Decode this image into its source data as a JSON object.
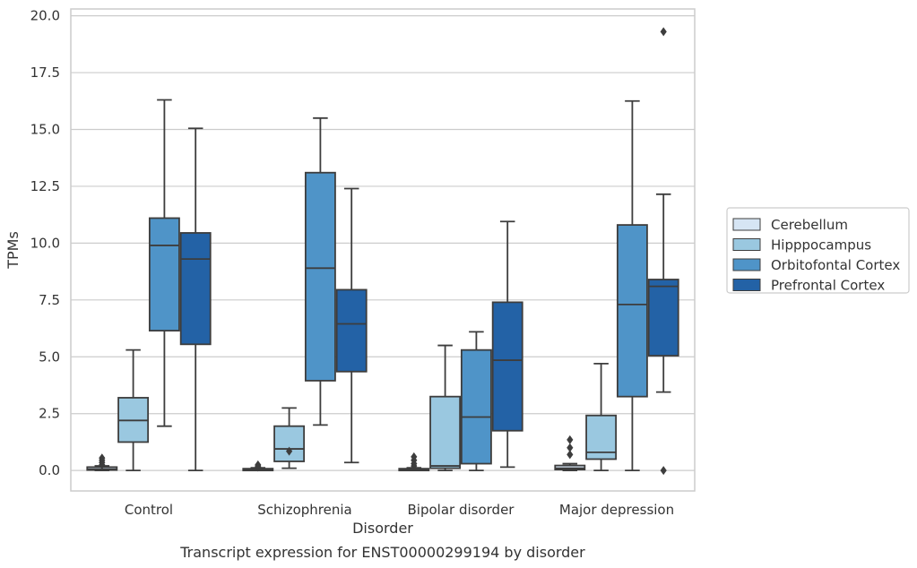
{
  "chart_data": {
    "type": "box",
    "title": "",
    "caption": "Transcript expression for ENST00000299194 by disorder",
    "xlabel": "Disorder",
    "ylabel": "TPMs",
    "ylim": [
      -0.9,
      20.3
    ],
    "yticks": [
      "0.0",
      "2.5",
      "5.0",
      "7.5",
      "10.0",
      "12.5",
      "15.0",
      "17.5",
      "20.0"
    ],
    "ytick_values": [
      0,
      2.5,
      5,
      7.5,
      10,
      12.5,
      15,
      17.5,
      20
    ],
    "categories": [
      "Control",
      "Schizophrenia",
      "Bipolar disorder",
      "Major depression"
    ],
    "grid": "horizontal",
    "legend_position": "right",
    "colors": {
      "Cerebellum": "#d6e5f4",
      "Hipppocampus": "#9ac8e0",
      "Orbitofontal Cortex": "#4f94c8",
      "Prefrontal Cortex": "#2362a6",
      "edge": "#3d3d3d",
      "grid": "#cccccc"
    },
    "series": [
      {
        "name": "Cerebellum",
        "boxes": [
          {
            "min": 0.0,
            "q1": 0.02,
            "median": 0.06,
            "q3": 0.15,
            "max": 0.2,
            "outliers": [
              0.25,
              0.35,
              0.45,
              0.55
            ]
          },
          {
            "min": 0.0,
            "q1": 0.0,
            "median": 0.03,
            "q3": 0.08,
            "max": 0.12,
            "outliers": [
              0.15,
              0.2,
              0.25
            ]
          },
          {
            "min": 0.0,
            "q1": 0.0,
            "median": 0.03,
            "q3": 0.08,
            "max": 0.12,
            "outliers": [
              0.2,
              0.3,
              0.45,
              0.6
            ]
          },
          {
            "min": 0.0,
            "q1": 0.04,
            "median": 0.1,
            "q3": 0.22,
            "max": 0.3,
            "outliers": [
              0.7,
              1.0,
              1.35
            ]
          }
        ]
      },
      {
        "name": "Hipppocampus",
        "boxes": [
          {
            "min": 0.0,
            "q1": 1.25,
            "median": 2.2,
            "q3": 3.2,
            "max": 5.3,
            "outliers": []
          },
          {
            "min": 0.1,
            "q1": 0.4,
            "median": 0.95,
            "q3": 1.95,
            "max": 2.75,
            "outliers": [
              0.85
            ]
          },
          {
            "min": 0.0,
            "q1": 0.1,
            "median": 0.2,
            "q3": 3.25,
            "max": 5.5,
            "outliers": []
          },
          {
            "min": 0.0,
            "q1": 0.5,
            "median": 0.8,
            "q3": 2.42,
            "max": 4.7,
            "outliers": []
          }
        ]
      },
      {
        "name": "Orbitofontal Cortex",
        "boxes": [
          {
            "min": 1.95,
            "q1": 6.15,
            "median": 9.9,
            "q3": 11.1,
            "max": 16.3,
            "outliers": []
          },
          {
            "min": 2.0,
            "q1": 3.95,
            "median": 8.9,
            "q3": 13.1,
            "max": 15.5,
            "outliers": []
          },
          {
            "min": 0.0,
            "q1": 0.3,
            "median": 2.35,
            "q3": 5.3,
            "max": 6.1,
            "outliers": []
          },
          {
            "min": 0.0,
            "q1": 3.25,
            "median": 7.3,
            "q3": 10.8,
            "max": 16.25,
            "outliers": []
          }
        ]
      },
      {
        "name": "Prefrontal Cortex",
        "boxes": [
          {
            "min": 0.0,
            "q1": 5.55,
            "median": 9.3,
            "q3": 10.45,
            "max": 15.05,
            "outliers": []
          },
          {
            "min": 0.35,
            "q1": 4.35,
            "median": 6.45,
            "q3": 7.95,
            "max": 12.4,
            "outliers": []
          },
          {
            "min": 0.15,
            "q1": 1.75,
            "median": 4.85,
            "q3": 7.4,
            "max": 10.95,
            "outliers": []
          },
          {
            "min": 3.45,
            "q1": 5.05,
            "median": 8.1,
            "q3": 8.4,
            "max": 12.15,
            "outliers": [
              19.3,
              0.0
            ]
          }
        ]
      }
    ]
  }
}
